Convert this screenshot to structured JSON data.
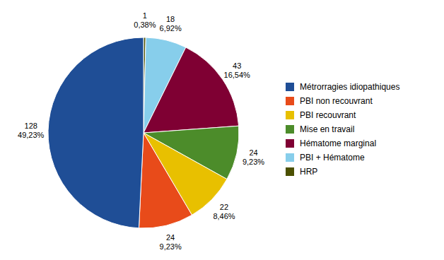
{
  "chart_data": {
    "type": "pie",
    "categories": [
      "HRP",
      "PBI + Hématome",
      "Hématome marginal",
      "Mise en travail",
      "PBI recouvrant",
      "PBI non recouvrant",
      "Métrorragies idiopathiques"
    ],
    "values": [
      1,
      18,
      43,
      24,
      22,
      24,
      128
    ],
    "value_labels": [
      "1\n0,38%",
      "18\n6,92%",
      "43\n16,54%",
      "24\n9,23%",
      "22\n8,46%",
      "24\n9,23%",
      "128\n49,23%"
    ],
    "colors": [
      "#4B5000",
      "#87CEEB",
      "#7F0033",
      "#4C8C2A",
      "#E8C000",
      "#E84B1A",
      "#1F4E96"
    ],
    "data_labels": true,
    "legend": "right",
    "legend_entries": [
      "Métrorragies idiopathiques",
      "PBI non recouvrant",
      "PBI recouvrant",
      "Mise en travail",
      "Hématome marginal",
      "PBI + Hématome",
      "HRP"
    ]
  }
}
